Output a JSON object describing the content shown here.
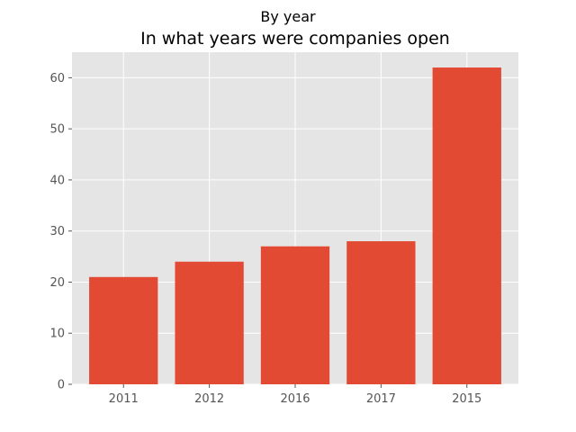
{
  "chart_data": {
    "type": "bar",
    "suptitle": "By year",
    "title": "In what years were companies open",
    "xlabel": "",
    "ylabel": "",
    "categories": [
      "2011",
      "2012",
      "2016",
      "2017",
      "2015"
    ],
    "values": [
      21,
      24,
      27,
      28,
      62
    ],
    "ylim": [
      0,
      65
    ],
    "yticks": [
      0,
      10,
      20,
      30,
      40,
      50,
      60
    ],
    "grid": true,
    "style": "ggplot",
    "colors": {
      "bar": "#E24A33",
      "plot_background": "#E5E5E5",
      "grid": "#FFFFFF",
      "tick_text": "#555555"
    }
  }
}
